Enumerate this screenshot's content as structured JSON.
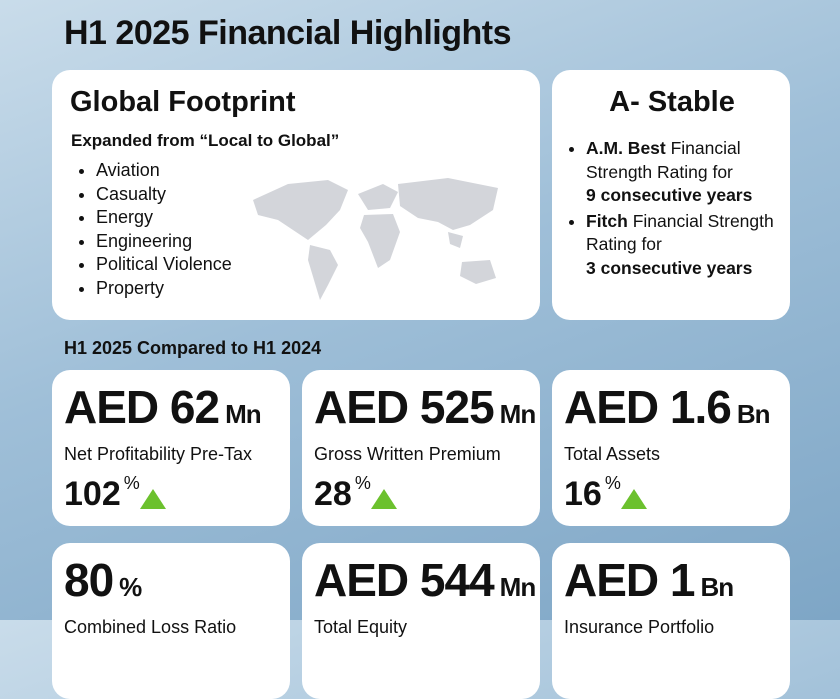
{
  "header": {
    "title": "H1 2025 Financial Highlights"
  },
  "footprint": {
    "title": "Global Footprint",
    "subtitle": "Expanded from “Local to Global”",
    "lines": [
      "Aviation",
      "Casualty",
      "Energy",
      "Engineering",
      "Political Violence",
      "Property"
    ]
  },
  "rating": {
    "title": "A- Stable",
    "items": [
      {
        "agency": "A.M. Best",
        "text": "Financial Strength Rating for",
        "years": "9 consecutive years"
      },
      {
        "agency": "Fitch",
        "text": "Financial Strength Rating for",
        "years": "3 consecutive years"
      }
    ]
  },
  "comparison": {
    "title": "H1 2025 Compared to H1 2024",
    "metrics": [
      {
        "value": "AED 62",
        "unit": "Mn",
        "label": "Net Profitability Pre-Tax",
        "change": "102",
        "change_unit": "%"
      },
      {
        "value": "AED 525",
        "unit": "Mn",
        "label": "Gross Written Premium",
        "change": "28",
        "change_unit": "%"
      },
      {
        "value": "AED 1.6",
        "unit": "Bn",
        "label": "Total Assets",
        "change": "16",
        "change_unit": "%"
      },
      {
        "value": "80",
        "unit": "%",
        "label": "Combined Loss Ratio"
      },
      {
        "value": "AED 544",
        "unit": "Mn",
        "label": "Total Equity"
      },
      {
        "value": "AED 1",
        "unit": "Bn",
        "label": "Insurance Portfolio"
      }
    ]
  }
}
